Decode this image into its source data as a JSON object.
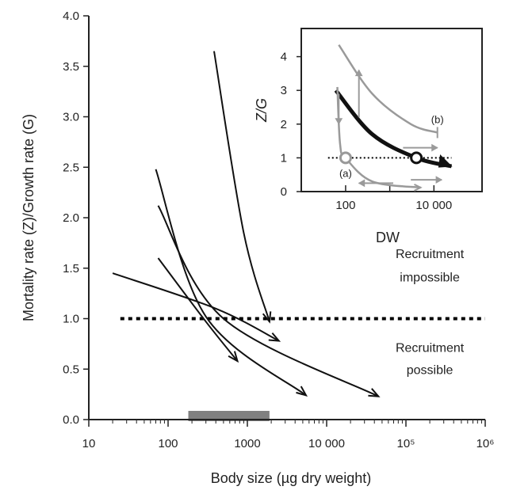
{
  "chart_data": [
    {
      "type": "line",
      "xscale": "log",
      "xlim": [
        10,
        1000000
      ],
      "ylim": [
        0,
        4
      ],
      "ylabel": "Mortality rate (Z)/Growth rate (G)",
      "xlabel": "Body size (µg dry weight)",
      "x_ticks": [
        {
          "value": 10,
          "label": "10"
        },
        {
          "value": 100,
          "label": "100"
        },
        {
          "value": 1000,
          "label": "1000"
        },
        {
          "value": 10000,
          "label": "10 000"
        },
        {
          "value": 100000,
          "label": "10⁵"
        },
        {
          "value": 1000000,
          "label": "10⁶"
        }
      ],
      "y_ticks": [
        {
          "value": 0,
          "label": "0.0"
        },
        {
          "value": 0.5,
          "label": "0.5"
        },
        {
          "value": 1,
          "label": "1.0"
        },
        {
          "value": 1.5,
          "label": "1.5"
        },
        {
          "value": 2,
          "label": "2.0"
        },
        {
          "value": 2.5,
          "label": "2.5"
        },
        {
          "value": 3,
          "label": "3.0"
        },
        {
          "value": 3.5,
          "label": "3.5"
        },
        {
          "value": 4,
          "label": "4.0"
        }
      ],
      "threshold": {
        "y": 1.0,
        "style": "dotted"
      },
      "shaded_range": {
        "x": [
          180,
          1900
        ],
        "color": "#808080"
      },
      "series": [
        {
          "points": [
            [
              20,
              1.45
            ],
            [
              400,
              1.1
            ],
            [
              2500,
              0.78
            ]
          ]
        },
        {
          "points": [
            [
              75,
              1.6
            ],
            [
              300,
              0.97
            ],
            [
              750,
              0.58
            ]
          ]
        },
        {
          "points": [
            [
              70,
              2.48
            ],
            [
              300,
              1.02
            ],
            [
              5500,
              0.24
            ]
          ]
        },
        {
          "points": [
            [
              75,
              2.12
            ],
            [
              500,
              1.0
            ],
            [
              45000,
              0.23
            ]
          ]
        },
        {
          "points": [
            [
              380,
              3.65
            ],
            [
              900,
              1.85
            ],
            [
              1900,
              0.97
            ]
          ]
        }
      ],
      "annotations": [
        {
          "text": "Recruitment",
          "x": 200000,
          "y": 1.6
        },
        {
          "text": "impossible",
          "x": 200000,
          "y": 1.37
        },
        {
          "text": "Recruitment",
          "x": 200000,
          "y": 0.67
        },
        {
          "text": "possible",
          "x": 200000,
          "y": 0.45
        }
      ],
      "colors": {
        "lines": "#111111",
        "threshold": "#000000",
        "shade": "#808080"
      }
    },
    {
      "type": "line",
      "role": "inset",
      "xscale": "log",
      "xlim": [
        20,
        100000
      ],
      "ylim": [
        0,
        4.6
      ],
      "xlabel": "DW",
      "ylabel": "Z/G",
      "x_ticks": [
        {
          "value": 100,
          "label": "100"
        },
        {
          "value": 10000,
          "label": "10 000"
        }
      ],
      "y_ticks": [
        {
          "value": 0,
          "label": "0"
        },
        {
          "value": 1,
          "label": "1"
        },
        {
          "value": 2,
          "label": "2"
        },
        {
          "value": 3,
          "label": "3"
        },
        {
          "value": 4,
          "label": "4"
        }
      ],
      "threshold": {
        "y": 1.0,
        "style": "dotted"
      },
      "series": [
        {
          "style": "thick-black",
          "points": [
            [
              60,
              3.0
            ],
            [
              400,
              1.7
            ],
            [
              4000,
              1.0
            ],
            [
              25000,
              0.75
            ]
          ]
        },
        {
          "style": "gray",
          "label": "(b)",
          "points": [
            [
              70,
              4.35
            ],
            [
              400,
              2.9
            ],
            [
              3000,
              2.0
            ],
            [
              12000,
              1.75
            ]
          ]
        },
        {
          "style": "gray",
          "label": "(a)",
          "points": [
            [
              65,
              3.1
            ],
            [
              75,
              1.4
            ],
            [
              100,
              1.0
            ],
            [
              400,
              0.3
            ],
            [
              5000,
              0.12
            ]
          ]
        }
      ],
      "markers": [
        {
          "label": "(a)",
          "x": 100,
          "y": 1.0,
          "stroke": "#999999"
        },
        {
          "x": 4000,
          "y": 1.0,
          "stroke": "#111111"
        }
      ],
      "arrows": [
        {
          "x": 70,
          "y1": 2.9,
          "y2": 2.0,
          "dir": "down"
        },
        {
          "x": 200,
          "y1": 2.2,
          "y2": 3.6,
          "dir": "up"
        },
        {
          "x": 1200,
          "y1": 0.25,
          "y2": 0.25,
          "x2": 200,
          "dir": "left"
        },
        {
          "x": 2000,
          "y1": 1.3,
          "x2": 12000,
          "y2": 1.3,
          "dir": "right"
        },
        {
          "x": 3000,
          "y1": 0.35,
          "x2": 15000,
          "y2": 0.35,
          "dir": "right"
        }
      ],
      "colors": {
        "main": "#111111",
        "gray": "#9a9a9a"
      }
    }
  ]
}
